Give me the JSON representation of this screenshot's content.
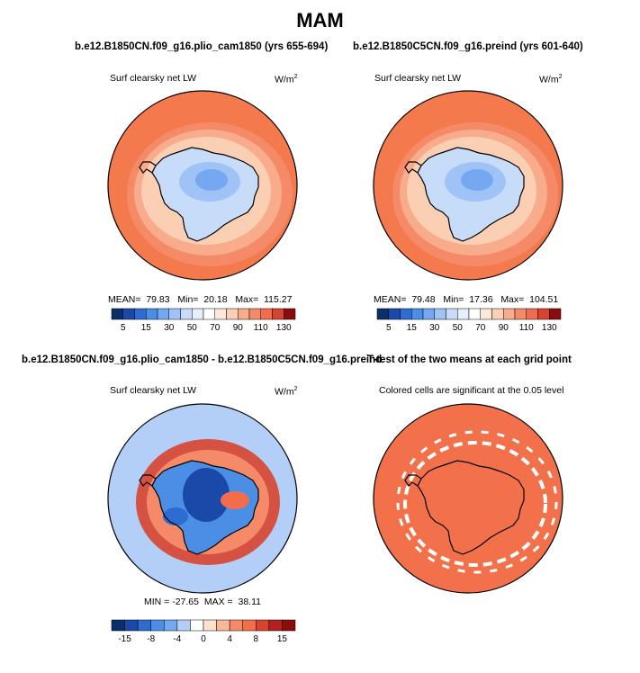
{
  "figure": {
    "season_title": "MAM",
    "colors": {
      "land_outline": "#000000",
      "ocean_orange": "#f47a4e",
      "sig_orange": "#f2714a"
    }
  },
  "panels": [
    {
      "run_title": "b.e12.B1850CN.f09_g16.plio_cam1850 (yrs 655-694)",
      "variable": "Surf clearsky net LW",
      "unit_base": "W/m",
      "unit_exp": "2",
      "mean_label": "MEAN=",
      "mean": "79.83",
      "min_label": "Min=",
      "min": "20.18",
      "max_label": "Max=",
      "max": "115.27"
    },
    {
      "run_title": "b.e12.B1850C5CN.f09_g16.preind (yrs 601-640)",
      "variable": "Surf clearsky net LW",
      "unit_base": "W/m",
      "unit_exp": "2",
      "mean_label": "MEAN=",
      "mean": "79.48",
      "min_label": "Min=",
      "min": "17.36",
      "max_label": "Max=",
      "max": "104.51"
    },
    {
      "run_title": "b.e12.B1850CN.f09_g16.plio_cam1850 - b.e12.B1850C5CN.f09_g16.preind",
      "variable": "Surf clearsky net LW",
      "unit_base": "W/m",
      "unit_exp": "2",
      "min_label": "MIN =",
      "min": "-27.65",
      "max_label": "MAX =",
      "max": "38.11"
    },
    {
      "run_title": "T-test of the two means at each grid point",
      "variable": "Colored cells are significant at the 0.05 level"
    }
  ],
  "chart_data": [
    {
      "type": "heatmap",
      "projection": "south-polar-stereographic",
      "title": "b.e12.B1850CN.f09_g16.plio_cam1850 (yrs 655-694)",
      "variable": "Surf clearsky net LW",
      "units": "W/m2",
      "stats": {
        "mean": 79.83,
        "min": 20.18,
        "max": 115.27
      },
      "colorbar": {
        "levels": [
          5,
          10,
          15,
          20,
          30,
          40,
          50,
          60,
          70,
          80,
          90,
          100,
          110,
          120,
          130
        ],
        "tick_labels": [
          "5",
          "15",
          "30",
          "50",
          "70",
          "90",
          "110",
          "130"
        ],
        "colors": [
          "#08306b",
          "#1a49a9",
          "#2d6dd2",
          "#4b8ee6",
          "#75a8f0",
          "#9fc3f6",
          "#c7dcf9",
          "#e6effc",
          "#ffffff",
          "#fde9d9",
          "#fbcfb3",
          "#f8ac8b",
          "#f58a68",
          "#f26d4b",
          "#d8432d",
          "#8c0c0c"
        ]
      }
    },
    {
      "type": "heatmap",
      "projection": "south-polar-stereographic",
      "title": "b.e12.B1850C5CN.f09_g16.preind (yrs 601-640)",
      "variable": "Surf clearsky net LW",
      "units": "W/m2",
      "stats": {
        "mean": 79.48,
        "min": 17.36,
        "max": 104.51
      },
      "colorbar": {
        "levels": [
          5,
          10,
          15,
          20,
          30,
          40,
          50,
          60,
          70,
          80,
          90,
          100,
          110,
          120,
          130
        ],
        "tick_labels": [
          "5",
          "15",
          "30",
          "50",
          "70",
          "90",
          "110",
          "130"
        ],
        "colors": [
          "#08306b",
          "#1a49a9",
          "#2d6dd2",
          "#4b8ee6",
          "#75a8f0",
          "#9fc3f6",
          "#c7dcf9",
          "#e6effc",
          "#ffffff",
          "#fde9d9",
          "#fbcfb3",
          "#f8ac8b",
          "#f58a68",
          "#f26d4b",
          "#d8432d",
          "#8c0c0c"
        ]
      }
    },
    {
      "type": "heatmap",
      "projection": "south-polar-stereographic",
      "title": "b.e12.B1850CN.f09_g16.plio_cam1850 - b.e12.B1850C5CN.f09_g16.preind",
      "variable": "Surf clearsky net LW",
      "units": "W/m2",
      "stats": {
        "min": -27.65,
        "max": 38.11
      },
      "colorbar": {
        "levels": [
          -15,
          -12,
          -8,
          -6,
          -4,
          -2,
          0,
          2,
          4,
          6,
          8,
          12,
          15
        ],
        "tick_labels": [
          "-15",
          "-8",
          "-4",
          "0",
          "4",
          "8",
          "15"
        ],
        "colors": [
          "#08306b",
          "#1a49a9",
          "#2d6dd2",
          "#4b8ee6",
          "#75a8f0",
          "#b3cff7",
          "#ffffff",
          "#fde2d0",
          "#f9b897",
          "#f58a68",
          "#f26d4b",
          "#d8432d",
          "#b51f1f",
          "#8c0c0c"
        ]
      }
    },
    {
      "type": "heatmap",
      "projection": "south-polar-stereographic",
      "title": "T-test of the two means at each grid point",
      "subtitle": "Colored cells are significant at the 0.05 level",
      "note": "binary significance mask: colored = significant, white = not significant"
    }
  ]
}
